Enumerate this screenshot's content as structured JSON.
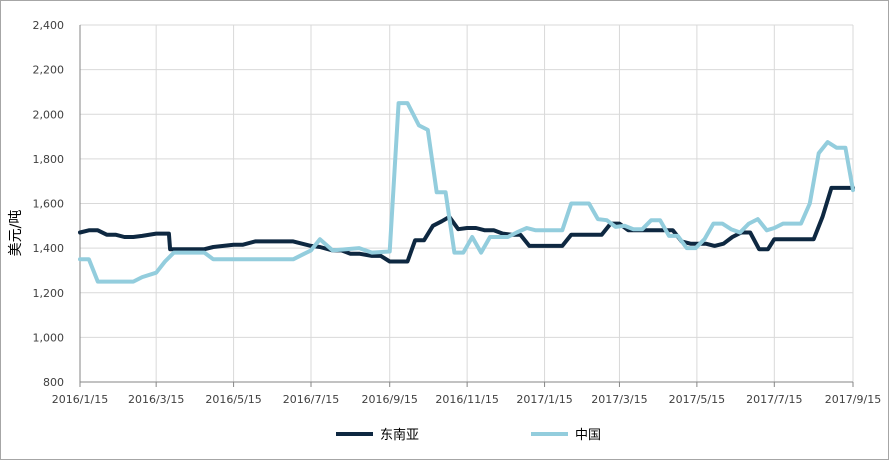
{
  "chart_data": {
    "type": "line",
    "title": "",
    "xlabel": "",
    "ylabel": "美元/吨",
    "ylim": [
      800,
      2400
    ],
    "y_ticks": [
      800,
      1000,
      1200,
      1400,
      1600,
      1800,
      2000,
      2200,
      2400
    ],
    "y_tick_labels": [
      "800",
      "1,000",
      "1,200",
      "1,400",
      "1,600",
      "1,800",
      "2,000",
      "2,200",
      "2,400"
    ],
    "x_start": "2016-01-15",
    "x_end": "2017-09-15",
    "x_ticks": [
      "2016-01-15",
      "2016-03-15",
      "2016-05-15",
      "2016-07-15",
      "2016-09-15",
      "2016-11-15",
      "2017-01-15",
      "2017-03-15",
      "2017-05-15",
      "2017-07-15",
      "2017-09-15"
    ],
    "x_tick_labels": [
      "2016/1/15",
      "2016/3/15",
      "2016/5/15",
      "2016/7/15",
      "2016/9/15",
      "2016/11/15",
      "2017/1/15",
      "2017/3/15",
      "2017/5/15",
      "2017/7/15",
      "2017/9/15"
    ],
    "grid": true,
    "legend_position": "bottom",
    "series": [
      {
        "name": "东南亚",
        "color": "#0e2841",
        "points": [
          [
            "2016-01-15",
            1470
          ],
          [
            "2016-01-22",
            1480
          ],
          [
            "2016-01-29",
            1480
          ],
          [
            "2016-02-05",
            1460
          ],
          [
            "2016-02-12",
            1460
          ],
          [
            "2016-02-19",
            1450
          ],
          [
            "2016-02-26",
            1450
          ],
          [
            "2016-03-04",
            1455
          ],
          [
            "2016-03-15",
            1465
          ],
          [
            "2016-03-25",
            1465
          ],
          [
            "2016-03-26",
            1395
          ],
          [
            "2016-04-22",
            1395
          ],
          [
            "2016-04-29",
            1405
          ],
          [
            "2016-05-15",
            1415
          ],
          [
            "2016-05-22",
            1415
          ],
          [
            "2016-06-01",
            1430
          ],
          [
            "2016-06-22",
            1430
          ],
          [
            "2016-07-01",
            1430
          ],
          [
            "2016-07-15",
            1410
          ],
          [
            "2016-07-22",
            1405
          ],
          [
            "2016-08-01",
            1390
          ],
          [
            "2016-08-08",
            1390
          ],
          [
            "2016-08-15",
            1375
          ],
          [
            "2016-08-22",
            1375
          ],
          [
            "2016-09-01",
            1365
          ],
          [
            "2016-09-08",
            1365
          ],
          [
            "2016-09-15",
            1340
          ],
          [
            "2016-09-29",
            1340
          ],
          [
            "2016-10-05",
            1435
          ],
          [
            "2016-10-12",
            1435
          ],
          [
            "2016-10-19",
            1500
          ],
          [
            "2016-10-26",
            1520
          ],
          [
            "2016-11-01",
            1540
          ],
          [
            "2016-11-08",
            1485
          ],
          [
            "2016-11-15",
            1490
          ],
          [
            "2016-11-22",
            1490
          ],
          [
            "2016-11-29",
            1480
          ],
          [
            "2016-12-06",
            1480
          ],
          [
            "2016-12-13",
            1465
          ],
          [
            "2016-12-20",
            1460
          ],
          [
            "2016-12-27",
            1460
          ],
          [
            "2017-01-03",
            1410
          ],
          [
            "2017-01-15",
            1410
          ],
          [
            "2017-01-29",
            1410
          ],
          [
            "2017-02-05",
            1460
          ],
          [
            "2017-02-19",
            1460
          ],
          [
            "2017-03-01",
            1460
          ],
          [
            "2017-03-08",
            1510
          ],
          [
            "2017-03-15",
            1510
          ],
          [
            "2017-03-22",
            1480
          ],
          [
            "2017-03-29",
            1480
          ],
          [
            "2017-04-05",
            1480
          ],
          [
            "2017-04-12",
            1480
          ],
          [
            "2017-04-19",
            1480
          ],
          [
            "2017-04-26",
            1480
          ],
          [
            "2017-05-03",
            1430
          ],
          [
            "2017-05-10",
            1420
          ],
          [
            "2017-05-15",
            1420
          ],
          [
            "2017-05-22",
            1420
          ],
          [
            "2017-05-29",
            1410
          ],
          [
            "2017-06-05",
            1420
          ],
          [
            "2017-06-12",
            1450
          ],
          [
            "2017-06-19",
            1470
          ],
          [
            "2017-06-26",
            1470
          ],
          [
            "2017-07-03",
            1395
          ],
          [
            "2017-07-10",
            1395
          ],
          [
            "2017-07-15",
            1440
          ],
          [
            "2017-08-08",
            1440
          ],
          [
            "2017-08-15",
            1440
          ],
          [
            "2017-08-22",
            1540
          ],
          [
            "2017-08-29",
            1670
          ],
          [
            "2017-09-08",
            1670
          ],
          [
            "2017-09-15",
            1670
          ]
        ]
      },
      {
        "name": "中国",
        "color": "#93cddd",
        "points": [
          [
            "2016-01-15",
            1350
          ],
          [
            "2016-01-22",
            1350
          ],
          [
            "2016-01-29",
            1250
          ],
          [
            "2016-02-26",
            1250
          ],
          [
            "2016-03-04",
            1270
          ],
          [
            "2016-03-15",
            1290
          ],
          [
            "2016-03-22",
            1340
          ],
          [
            "2016-03-29",
            1380
          ],
          [
            "2016-04-22",
            1380
          ],
          [
            "2016-04-29",
            1350
          ],
          [
            "2016-05-15",
            1350
          ],
          [
            "2016-06-22",
            1350
          ],
          [
            "2016-07-01",
            1350
          ],
          [
            "2016-07-08",
            1370
          ],
          [
            "2016-07-15",
            1390
          ],
          [
            "2016-07-22",
            1440
          ],
          [
            "2016-08-01",
            1390
          ],
          [
            "2016-08-22",
            1400
          ],
          [
            "2016-09-01",
            1380
          ],
          [
            "2016-09-15",
            1385
          ],
          [
            "2016-09-22",
            2050
          ],
          [
            "2016-09-29",
            2050
          ],
          [
            "2016-10-08",
            1950
          ],
          [
            "2016-10-15",
            1930
          ],
          [
            "2016-10-22",
            1650
          ],
          [
            "2016-10-29",
            1650
          ],
          [
            "2016-11-05",
            1380
          ],
          [
            "2016-11-12",
            1380
          ],
          [
            "2016-11-19",
            1450
          ],
          [
            "2016-11-26",
            1380
          ],
          [
            "2016-12-03",
            1450
          ],
          [
            "2016-12-17",
            1450
          ],
          [
            "2016-12-24",
            1470
          ],
          [
            "2017-01-01",
            1490
          ],
          [
            "2017-01-08",
            1480
          ],
          [
            "2017-01-15",
            1480
          ],
          [
            "2017-01-29",
            1480
          ],
          [
            "2017-02-05",
            1600
          ],
          [
            "2017-02-19",
            1600
          ],
          [
            "2017-02-26",
            1530
          ],
          [
            "2017-03-05",
            1525
          ],
          [
            "2017-03-12",
            1495
          ],
          [
            "2017-03-19",
            1500
          ],
          [
            "2017-03-26",
            1485
          ],
          [
            "2017-04-02",
            1485
          ],
          [
            "2017-04-09",
            1525
          ],
          [
            "2017-04-16",
            1525
          ],
          [
            "2017-04-23",
            1455
          ],
          [
            "2017-04-30",
            1455
          ],
          [
            "2017-05-07",
            1400
          ],
          [
            "2017-05-14",
            1400
          ],
          [
            "2017-05-21",
            1440
          ],
          [
            "2017-05-28",
            1510
          ],
          [
            "2017-06-04",
            1510
          ],
          [
            "2017-06-11",
            1485
          ],
          [
            "2017-06-18",
            1470
          ],
          [
            "2017-06-25",
            1510
          ],
          [
            "2017-07-02",
            1530
          ],
          [
            "2017-07-09",
            1480
          ],
          [
            "2017-07-15",
            1490
          ],
          [
            "2017-07-22",
            1510
          ],
          [
            "2017-07-29",
            1510
          ],
          [
            "2017-08-05",
            1510
          ],
          [
            "2017-08-12",
            1600
          ],
          [
            "2017-08-19",
            1825
          ],
          [
            "2017-08-26",
            1875
          ],
          [
            "2017-09-02",
            1850
          ],
          [
            "2017-09-09",
            1850
          ],
          [
            "2017-09-15",
            1660
          ]
        ]
      }
    ]
  }
}
